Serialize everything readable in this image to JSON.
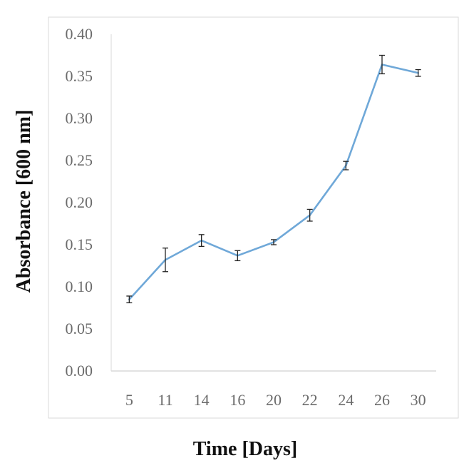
{
  "chart_data": {
    "type": "line",
    "title": "",
    "xlabel": "Time [Days]",
    "ylabel": "Absorbance [600 nm]",
    "categories": [
      "5",
      "11",
      "14",
      "16",
      "20",
      "22",
      "24",
      "26",
      "30"
    ],
    "series": [
      {
        "values": [
          0.085,
          0.132,
          0.155,
          0.137,
          0.153,
          0.185,
          0.244,
          0.364,
          0.354
        ],
        "error": [
          0.004,
          0.014,
          0.007,
          0.006,
          0.003,
          0.007,
          0.005,
          0.011,
          0.004
        ],
        "color": "#6fa8d8"
      }
    ],
    "ylim": [
      0,
      0.4
    ],
    "yticks": [
      "0.00",
      "0.05",
      "0.10",
      "0.15",
      "0.20",
      "0.25",
      "0.30",
      "0.35",
      "0.40"
    ],
    "grid": false,
    "legend": "none"
  }
}
